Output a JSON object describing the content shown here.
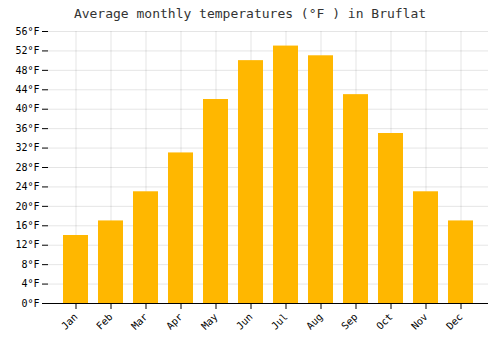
{
  "chart_data": {
    "type": "bar",
    "title": "Average monthly temperatures (°F ) in Bruflat",
    "categories": [
      "Jan",
      "Feb",
      "Mar",
      "Apr",
      "May",
      "Jun",
      "Jul",
      "Aug",
      "Sep",
      "Oct",
      "Nov",
      "Dec"
    ],
    "values": [
      14,
      17,
      23,
      31,
      42,
      50,
      53,
      51,
      43,
      35,
      23,
      17
    ],
    "color": "#FFB700",
    "ylim": [
      0,
      56
    ],
    "yticks": [
      {
        "value": 0,
        "label": "0°F"
      },
      {
        "value": 4,
        "label": "4°F"
      },
      {
        "value": 8,
        "label": "8°F"
      },
      {
        "value": 12,
        "label": "12°F"
      },
      {
        "value": 16,
        "label": "16°F"
      },
      {
        "value": 20,
        "label": "20°F"
      },
      {
        "value": 24,
        "label": "24°F"
      },
      {
        "value": 28,
        "label": "28°F"
      },
      {
        "value": 32,
        "label": "32°F"
      },
      {
        "value": 36,
        "label": "36°F"
      },
      {
        "value": 40,
        "label": "40°F"
      },
      {
        "value": 44,
        "label": "44°F"
      },
      {
        "value": 48,
        "label": "48°F"
      },
      {
        "value": 52,
        "label": "52°F"
      },
      {
        "value": 56,
        "label": "56°F"
      }
    ],
    "grid": true
  }
}
